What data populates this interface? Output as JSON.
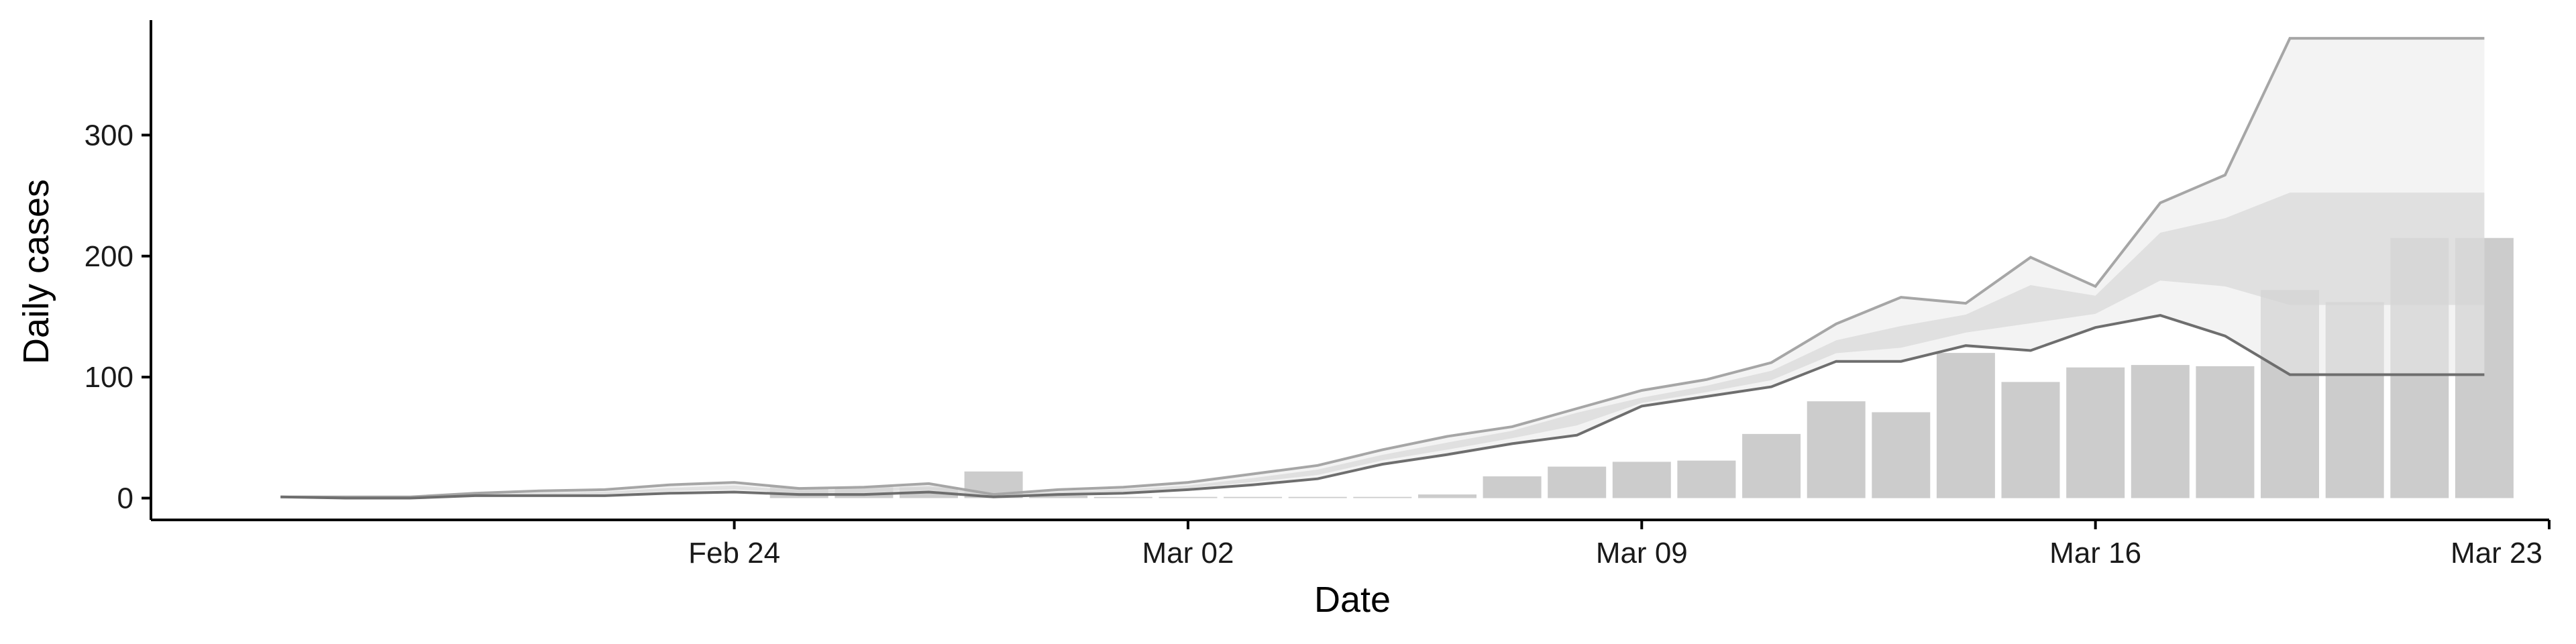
{
  "chart_data": {
    "type": "bar",
    "xlabel": "Date",
    "ylabel": "Daily cases",
    "x_range": [
      "2020-02-15",
      "2020-03-23"
    ],
    "ylim": [
      -18,
      395
    ],
    "x_ticks": [
      {
        "date": "2020-02-24",
        "label": "Feb 24"
      },
      {
        "date": "2020-03-02",
        "label": "Mar 02"
      },
      {
        "date": "2020-03-09",
        "label": "Mar 09"
      },
      {
        "date": "2020-03-16",
        "label": "Mar 16"
      },
      {
        "date": "2020-03-23",
        "label": "Mar 23"
      }
    ],
    "y_ticks": [
      0,
      100,
      200,
      300
    ],
    "grid": false,
    "legend": "none",
    "colors": {
      "bars": "#cccccc",
      "band_outer": "#e9e9e9",
      "band_inner": "#d4d4d4",
      "upper_line": "#a6a6a6",
      "median_line": "#8a8a8a",
      "lower_line": "#6e6e6e",
      "axis": "#000000"
    },
    "bars": {
      "dates": [
        "2020-02-25",
        "2020-02-26",
        "2020-02-27",
        "2020-02-28",
        "2020-02-29",
        "2020-03-01",
        "2020-03-02",
        "2020-03-03",
        "2020-03-04",
        "2020-03-05",
        "2020-03-06",
        "2020-03-07",
        "2020-03-08",
        "2020-03-09",
        "2020-03-10",
        "2020-03-11",
        "2020-03-12",
        "2020-03-13",
        "2020-03-14",
        "2020-03-15",
        "2020-03-16",
        "2020-03-17",
        "2020-03-18",
        "2020-03-19",
        "2020-03-20",
        "2020-03-21",
        "2020-03-22"
      ],
      "values": [
        9,
        9,
        9,
        22,
        2,
        1,
        1,
        1,
        1,
        1,
        3,
        18,
        26,
        30,
        31,
        53,
        80,
        71,
        120,
        96,
        108,
        110,
        109,
        172,
        162,
        215,
        215
      ]
    },
    "estimate": {
      "dates": [
        "2020-02-17",
        "2020-02-18",
        "2020-02-19",
        "2020-02-20",
        "2020-02-21",
        "2020-02-22",
        "2020-02-23",
        "2020-02-24",
        "2020-02-25",
        "2020-02-26",
        "2020-02-27",
        "2020-02-28",
        "2020-02-29",
        "2020-03-01",
        "2020-03-02",
        "2020-03-03",
        "2020-03-04",
        "2020-03-05",
        "2020-03-06",
        "2020-03-07",
        "2020-03-08",
        "2020-03-09",
        "2020-03-10",
        "2020-03-11",
        "2020-03-12",
        "2020-03-13",
        "2020-03-14",
        "2020-03-15",
        "2020-03-16",
        "2020-03-17",
        "2020-03-18",
        "2020-03-19",
        "2020-03-20",
        "2020-03-21",
        "2020-03-22"
      ],
      "upper": [
        1,
        1,
        1,
        4,
        6,
        7,
        11,
        13,
        8,
        9,
        12,
        3,
        7,
        9,
        13,
        20,
        27,
        40,
        51,
        59,
        74,
        89,
        98,
        112,
        144,
        166,
        161,
        199,
        175,
        244,
        267,
        380,
        380,
        380,
        380
      ],
      "median": [
        1,
        1,
        1,
        3,
        4,
        5,
        8,
        10,
        6,
        7,
        10,
        2,
        5,
        7,
        10,
        16,
        23,
        35,
        45,
        55,
        70,
        82,
        92,
        104,
        128,
        138,
        150,
        172,
        166,
        215,
        225,
        230,
        230,
        230,
        230
      ],
      "lower": [
        1,
        0,
        0,
        2,
        2,
        2,
        4,
        5,
        3,
        3,
        5,
        1,
        3,
        4,
        7,
        11,
        16,
        28,
        36,
        45,
        52,
        76,
        84,
        92,
        113,
        113,
        126,
        122,
        141,
        151,
        134,
        102,
        102,
        102,
        102
      ]
    }
  }
}
